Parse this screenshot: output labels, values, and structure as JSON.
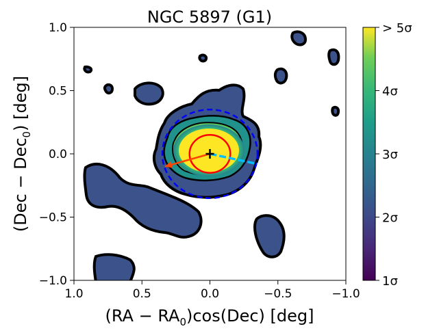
{
  "chart_data": {
    "type": "heatmap",
    "title": "NGC 5897 (G1)",
    "xlabel": {
      "main": "(RA − RA",
      "sub": "0",
      "tail": ")cos(Dec) [deg]"
    },
    "ylabel": {
      "main": "(Dec − Dec",
      "sub": "0",
      "tail": ") [deg]"
    },
    "xlim": [
      1.0,
      -1.0
    ],
    "ylim": [
      -1.0,
      1.0
    ],
    "x_ticks": [
      1.0,
      0.5,
      0.0,
      -0.5,
      -1.0
    ],
    "x_tick_labels": [
      "1.0",
      "0.5",
      "0.0",
      "−0.5",
      "−1.0"
    ],
    "y_ticks": [
      1.0,
      0.5,
      0.0,
      -0.5,
      -1.0
    ],
    "y_tick_labels": [
      "1.0",
      "0.5",
      "0.0",
      "−0.5",
      "−1.0"
    ],
    "colorbar": {
      "colormap": "viridis",
      "range": [
        1,
        5
      ],
      "ticks": [
        1,
        2,
        3,
        4,
        5
      ],
      "tick_labels": [
        "1σ",
        "2σ",
        "3σ",
        "4σ",
        "> 5σ"
      ]
    },
    "cluster_center": {
      "x": 0.0,
      "y": 0.0,
      "marker": "+"
    },
    "tidal_circle_radius": 0.35,
    "inner_circle_radius": 0.15,
    "orbit_arrow": {
      "from": [
        0.0,
        0.0
      ],
      "to": [
        0.33,
        -0.1
      ],
      "color": "#ff4500"
    },
    "orbit_dashed": {
      "from": [
        0.0,
        0.0
      ],
      "to": [
        -0.35,
        -0.08
      ],
      "color": "#00bfff"
    },
    "colors": {
      "contour_line": "#000000",
      "tidal_circle": "#0000ff",
      "inner_circle": "#ff0000",
      "arrow": "#ff4500",
      "dashed_path": "#00bfff"
    }
  }
}
